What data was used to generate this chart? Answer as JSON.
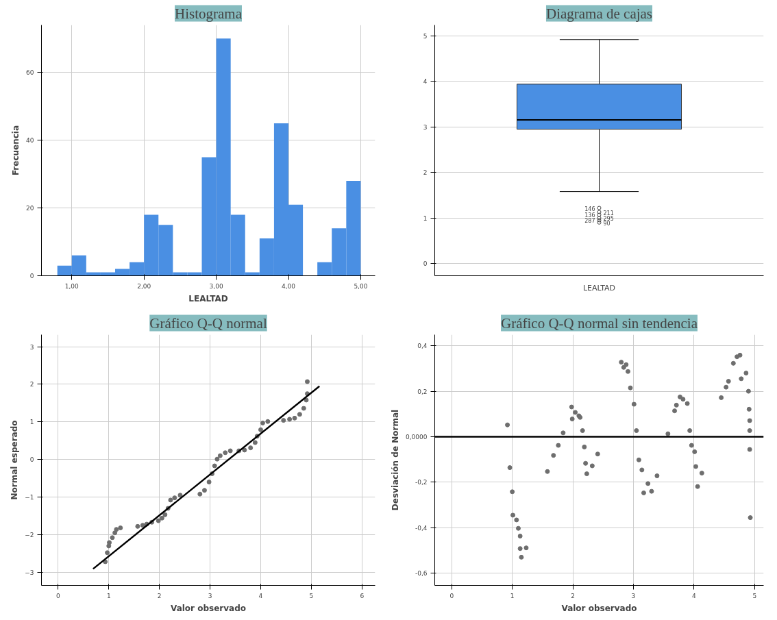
{
  "chart_data": [
    {
      "type": "histogram",
      "title": "Histograma",
      "xlabel": "LEALTAD",
      "ylabel": "Frecuencia",
      "color": "#4a8fe3",
      "bins": [
        0.8,
        1.0,
        1.2,
        1.4,
        1.6,
        1.8,
        2.0,
        2.2,
        2.4,
        2.6,
        2.8,
        3.0,
        3.2,
        3.4,
        3.6,
        3.8,
        4.0,
        4.2,
        4.4,
        4.6,
        4.8,
        5.0
      ],
      "values": [
        3,
        6,
        1,
        1,
        2,
        4,
        18,
        15,
        1,
        1,
        35,
        70,
        18,
        1,
        11,
        45,
        21,
        0,
        4,
        14,
        28
      ],
      "xlim": [
        0.58,
        5.2
      ],
      "xticks": [
        {
          "value": 1,
          "label": "1,00"
        },
        {
          "value": 2,
          "label": "2,00"
        },
        {
          "value": 3,
          "label": "3,00"
        },
        {
          "value": 4,
          "label": "4,00"
        },
        {
          "value": 5,
          "label": "5,00"
        }
      ],
      "ylim": [
        0,
        74
      ],
      "yticks": [
        0,
        20,
        40,
        60
      ],
      "grid": true
    },
    {
      "type": "box",
      "title": "Diagrama de cajas",
      "categories": [
        "LEALTAD"
      ],
      "color": "#4a8fe3",
      "boxes": [
        {
          "low": 1.58,
          "q1": 2.95,
          "median": 3.155,
          "q3": 3.94,
          "high": 4.92,
          "outliers": [
            1.22,
            1.13,
            1.07,
            1.0,
            0.95,
            0.9
          ]
        }
      ],
      "ylim": [
        -0.27,
        5.24
      ],
      "yticks": [
        0,
        1,
        2,
        3,
        4,
        5
      ],
      "grid": "y",
      "annotations": [
        "146",
        "211",
        "136",
        "295",
        "287",
        "90"
      ]
    },
    {
      "type": "scatter",
      "title": "Gráfico Q-Q normal",
      "xlabel": "Valor observado",
      "ylabel": "Normal esperado",
      "xlim": [
        -0.33,
        6.26
      ],
      "xticks": [
        0,
        1,
        2,
        3,
        4,
        5,
        6
      ],
      "ylim": [
        -3.35,
        3.32
      ],
      "yticks": [
        -3,
        -2,
        -1,
        0,
        1,
        2,
        3
      ],
      "grid": true,
      "series": [
        {
          "type": "scatter",
          "marker": "circle",
          "color": "#6e6e6e",
          "x": [
            0.93,
            0.97,
            1.0,
            1.01,
            1.07,
            1.12,
            1.15,
            1.23,
            1.57,
            1.67,
            1.75,
            1.85,
            1.98,
            2.05,
            2.11,
            2.17,
            2.22,
            2.3,
            2.41,
            2.8,
            2.89,
            2.98,
            3.04,
            3.09,
            3.14,
            3.2,
            3.3,
            3.4,
            3.57,
            3.68,
            3.8,
            3.89,
            3.93,
            4.0,
            4.04,
            4.14,
            4.45,
            4.57,
            4.67,
            4.77,
            4.85,
            4.9,
            4.92,
            4.92
          ],
          "values": [
            -2.72,
            -2.48,
            -2.3,
            -2.21,
            -2.08,
            -1.95,
            -1.86,
            -1.82,
            -1.78,
            -1.75,
            -1.72,
            -1.67,
            -1.63,
            -1.56,
            -1.47,
            -1.3,
            -1.08,
            -1.02,
            -0.95,
            -0.92,
            -0.82,
            -0.6,
            -0.38,
            -0.17,
            0.01,
            0.1,
            0.18,
            0.23,
            0.23,
            0.25,
            0.31,
            0.45,
            0.62,
            0.79,
            0.97,
            1.01,
            1.04,
            1.07,
            1.1,
            1.2,
            1.36,
            1.58,
            1.75,
            2.07
          ]
        },
        {
          "type": "line",
          "color": "#000000",
          "x": [
            0.69,
            5.16
          ],
          "values": [
            -2.91,
            1.95
          ]
        }
      ]
    },
    {
      "type": "scatter",
      "title": "Gráfico Q-Q normal sin tendencia",
      "xlabel": "Valor observado",
      "ylabel": "Desviación de Normal",
      "xlim": [
        -0.28,
        5.15
      ],
      "xticks": [
        0,
        1,
        2,
        3,
        4,
        5
      ],
      "ylim": [
        -0.654,
        0.449
      ],
      "yticks": [
        {
          "value": 0.4,
          "label": "0,4"
        },
        {
          "value": 0.2,
          "label": "0,2"
        },
        {
          "value": 0,
          "label": "0,0000"
        },
        {
          "value": -0.2,
          "label": "-0,2"
        },
        {
          "value": -0.4,
          "label": "-0,4"
        },
        {
          "value": -0.6,
          "label": "-0,6"
        }
      ],
      "grid": true,
      "ref_lines": [
        {
          "axis": "y",
          "value": 0,
          "color": "#000000"
        }
      ],
      "series": [
        {
          "type": "scatter",
          "marker": "circle",
          "color": "#6e6e6e",
          "x": [
            0.92,
            0.96,
            1.0,
            1.01,
            1.07,
            1.1,
            1.13,
            1.13,
            1.15,
            1.23,
            1.58,
            1.68,
            1.76,
            1.84,
            1.98,
            1.99,
            2.04,
            2.1,
            2.12,
            2.16,
            2.19,
            2.21,
            2.23,
            2.32,
            2.41,
            2.8,
            2.84,
            2.88,
            2.91,
            2.95,
            3.01,
            3.05,
            3.09,
            3.14,
            3.17,
            3.24,
            3.3,
            3.39,
            3.57,
            3.68,
            3.71,
            3.77,
            3.82,
            3.89,
            3.93,
            3.96,
            4.01,
            4.03,
            4.06,
            4.13,
            4.45,
            4.53,
            4.57,
            4.65,
            4.71,
            4.76,
            4.78,
            4.86,
            4.9,
            4.91,
            4.92,
            4.92,
            4.92,
            4.93
          ],
          "values": [
            0.052,
            -0.136,
            -0.242,
            -0.345,
            -0.366,
            -0.403,
            -0.437,
            -0.492,
            -0.53,
            -0.489,
            -0.153,
            -0.082,
            -0.038,
            0.017,
            0.131,
            0.078,
            0.107,
            0.092,
            0.085,
            0.027,
            -0.045,
            -0.117,
            -0.163,
            -0.128,
            -0.076,
            0.328,
            0.305,
            0.317,
            0.287,
            0.215,
            0.143,
            0.027,
            -0.102,
            -0.146,
            -0.247,
            -0.206,
            -0.24,
            -0.172,
            0.013,
            0.114,
            0.139,
            0.175,
            0.165,
            0.146,
            0.027,
            -0.038,
            -0.066,
            -0.131,
            -0.219,
            -0.16,
            0.172,
            0.218,
            0.244,
            0.323,
            0.352,
            0.359,
            0.255,
            0.28,
            0.2,
            0.121,
            0.071,
            0.027,
            -0.056,
            -0.356
          ]
        }
      ]
    }
  ]
}
